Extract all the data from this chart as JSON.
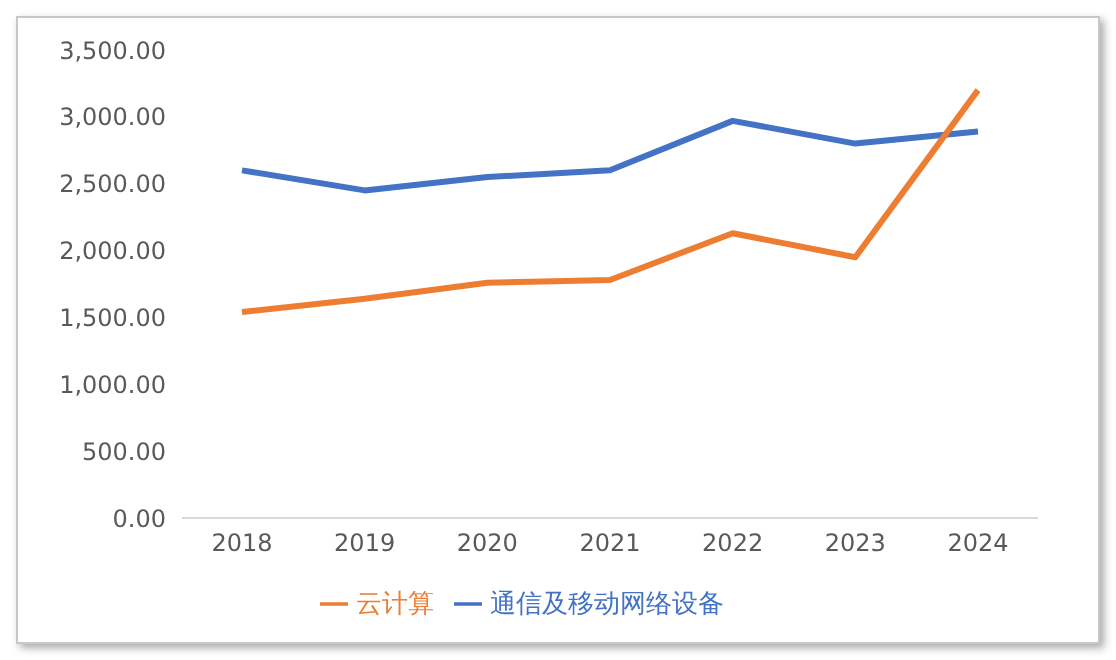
{
  "chart_data": {
    "type": "line",
    "categories": [
      "2018",
      "2019",
      "2020",
      "2021",
      "2022",
      "2023",
      "2024"
    ],
    "series": [
      {
        "name": "通信及移动网络设备",
        "color": "#4472c4",
        "values": [
          2600,
          2450,
          2550,
          2600,
          2970,
          2800,
          2890
        ]
      },
      {
        "name": "云计算",
        "color": "#ed7d31",
        "values": [
          1540,
          1640,
          1760,
          1780,
          2130,
          1950,
          3200
        ]
      }
    ],
    "ylim": [
      0,
      3500
    ],
    "yticks": [
      {
        "value": 0,
        "label": "0.00"
      },
      {
        "value": 500,
        "label": "500.00"
      },
      {
        "value": 1000,
        "label": "1,000.00"
      },
      {
        "value": 1500,
        "label": "1,500.00"
      },
      {
        "value": 2000,
        "label": "2,000.00"
      },
      {
        "value": 2500,
        "label": "2,500.00"
      },
      {
        "value": 3000,
        "label": "3,000.00"
      },
      {
        "value": 3500,
        "label": "3,500.00"
      }
    ],
    "grid": false,
    "legend": "bottom",
    "marker": "none",
    "line_style": "solid"
  }
}
